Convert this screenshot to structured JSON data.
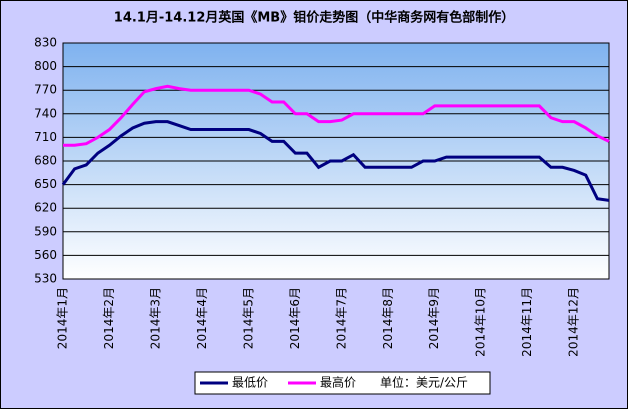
{
  "chart_data": {
    "type": "line",
    "title": "14.1月-14.12月英国《MB》钼价走势图（中华商务网有色部制作）",
    "categories": [
      "2014年1月",
      null,
      null,
      null,
      "2014年2月",
      null,
      null,
      null,
      "2014年3月",
      null,
      null,
      null,
      "2014年4月",
      null,
      null,
      null,
      "2014年5月",
      null,
      null,
      null,
      "2014年6月",
      null,
      null,
      null,
      "2014年7月",
      null,
      null,
      null,
      "2014年8月",
      null,
      null,
      null,
      "2014年9月",
      null,
      null,
      null,
      "2014年10月",
      null,
      null,
      null,
      "2014年11月",
      null,
      null,
      null,
      "2014年12月",
      null,
      null,
      null
    ],
    "series": [
      {
        "name": "最低价",
        "color": "#000080",
        "values": [
          650,
          670,
          675,
          690,
          700,
          712,
          722,
          728,
          730,
          730,
          725,
          720,
          720,
          720,
          720,
          720,
          720,
          715,
          705,
          705,
          690,
          690,
          672,
          680,
          680,
          688,
          672,
          672,
          672,
          672,
          672,
          680,
          680,
          685,
          685,
          685,
          685,
          685,
          685,
          685,
          685,
          685,
          672,
          672,
          668,
          662,
          632,
          630
        ]
      },
      {
        "name": "最高价",
        "color": "#ff00ff",
        "values": [
          700,
          700,
          702,
          710,
          720,
          735,
          752,
          768,
          772,
          775,
          772,
          770,
          770,
          770,
          770,
          770,
          770,
          765,
          755,
          755,
          740,
          740,
          730,
          730,
          732,
          740,
          740,
          740,
          740,
          740,
          740,
          740,
          750,
          750,
          750,
          750,
          750,
          750,
          750,
          750,
          750,
          750,
          735,
          730,
          730,
          722,
          712,
          705
        ]
      }
    ],
    "unit_note": "单位：美元/公斤",
    "ylim": [
      530,
      830
    ],
    "yticks": [
      530,
      560,
      590,
      620,
      650,
      680,
      710,
      740,
      770,
      800,
      830
    ],
    "grid": true
  }
}
